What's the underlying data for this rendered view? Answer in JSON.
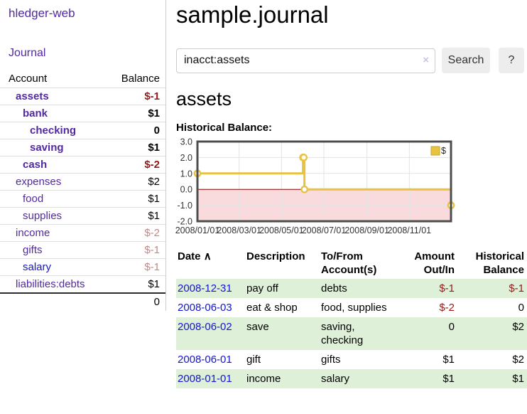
{
  "colors": {
    "link_purple": "#5229a3",
    "link_blue": "#1515d0",
    "negative_strong": "#941919",
    "negative_soft": "#c38989",
    "row_stripe_green": "#dff0d8",
    "chart_line": "#e9c240",
    "chart_border": "#4d4d4d",
    "chart_grid": "#e3e3e3",
    "chart_negative_fill": "#fadbdd",
    "chart_zero_line": "#8b0000",
    "button_bg": "#ededed"
  },
  "sidebar": {
    "brand": "hledger-web",
    "journal_link": "Journal",
    "accounts_table": {
      "headers": {
        "account": "Account",
        "balance": "Balance"
      },
      "rows": [
        {
          "name": "assets",
          "balance": "$-1",
          "depth": 1,
          "bold": true,
          "balance_tone": "neg-strong"
        },
        {
          "name": "bank",
          "balance": "$1",
          "depth": 2,
          "bold": true,
          "balance_tone": "normal"
        },
        {
          "name": "checking",
          "balance": "0",
          "depth": 3,
          "bold": true,
          "balance_tone": "normal"
        },
        {
          "name": "saving",
          "balance": "$1",
          "depth": 3,
          "bold": true,
          "balance_tone": "normal"
        },
        {
          "name": "cash",
          "balance": "$-2",
          "depth": 2,
          "bold": true,
          "balance_tone": "neg-strong"
        },
        {
          "name": "expenses",
          "balance": "$2",
          "depth": 1,
          "bold": false,
          "balance_tone": "normal"
        },
        {
          "name": "food",
          "balance": "$1",
          "depth": 2,
          "bold": false,
          "balance_tone": "normal"
        },
        {
          "name": "supplies",
          "balance": "$1",
          "depth": 2,
          "bold": false,
          "balance_tone": "normal"
        },
        {
          "name": "income",
          "balance": "$-2",
          "depth": 1,
          "bold": false,
          "balance_tone": "neg-soft"
        },
        {
          "name": "gifts",
          "balance": "$-1",
          "depth": 2,
          "bold": false,
          "balance_tone": "neg-soft"
        },
        {
          "name": "salary",
          "balance": "$-1",
          "depth": 2,
          "bold": false,
          "balance_tone": "neg-soft",
          "link_tone": "blue"
        },
        {
          "name": "liabilities:debts",
          "balance": "$1",
          "depth": 1,
          "bold": false,
          "balance_tone": "normal"
        }
      ],
      "total": "0"
    }
  },
  "header": {
    "title": "sample.journal"
  },
  "search": {
    "value": "inacct:assets",
    "clear_icon": "×",
    "search_button": "Search",
    "help_button": "?"
  },
  "account_page": {
    "heading": "assets",
    "chart_title": "Historical Balance:"
  },
  "chart_data": {
    "type": "line",
    "step": true,
    "series": [
      {
        "name": "$",
        "color": "#e9c240",
        "points": [
          [
            "2008/01/01",
            1
          ],
          [
            "2008/06/01",
            2
          ],
          [
            "2008/06/02",
            2
          ],
          [
            "2008/06/03",
            0
          ],
          [
            "2008/12/31",
            -1
          ]
        ]
      }
    ],
    "x_ticks": [
      "2008/01/01",
      "2008/03/01",
      "2008/05/01",
      "2008/07/01",
      "2008/09/01",
      "2008/11/01"
    ],
    "y_ticks": [
      "3.0",
      "2.0",
      "1.0",
      "0.0",
      "-1.0",
      "-2.0"
    ],
    "xlim": [
      "2008/01/01",
      "2008/12/31"
    ],
    "ylim": [
      -2,
      3
    ],
    "grid": true,
    "legend_position": "top-right",
    "legend_label": "$"
  },
  "register_table": {
    "headers": {
      "date": "Date",
      "sort_arrow": "∧",
      "description": "Description",
      "tofrom": "To/From Account(s)",
      "amount": "Amount Out/In",
      "balance": "Historical Balance"
    },
    "rows": [
      {
        "date": "2008-12-31",
        "description": "pay off",
        "tofrom": "debts",
        "amount": "$-1",
        "amount_tone": "neg",
        "balance": "$-1",
        "balance_tone": "neg"
      },
      {
        "date": "2008-06-03",
        "description": "eat & shop",
        "tofrom": "food, supplies",
        "amount": "$-2",
        "amount_tone": "neg",
        "balance": "0",
        "balance_tone": "normal"
      },
      {
        "date": "2008-06-02",
        "description": "save",
        "tofrom": "saving, checking",
        "amount": "0",
        "amount_tone": "normal",
        "balance": "$2",
        "balance_tone": "normal"
      },
      {
        "date": "2008-06-01",
        "description": "gift",
        "tofrom": "gifts",
        "amount": "$1",
        "amount_tone": "normal",
        "balance": "$2",
        "balance_tone": "normal"
      },
      {
        "date": "2008-01-01",
        "description": "income",
        "tofrom": "salary",
        "amount": "$1",
        "amount_tone": "normal",
        "balance": "$1",
        "balance_tone": "normal"
      }
    ]
  }
}
